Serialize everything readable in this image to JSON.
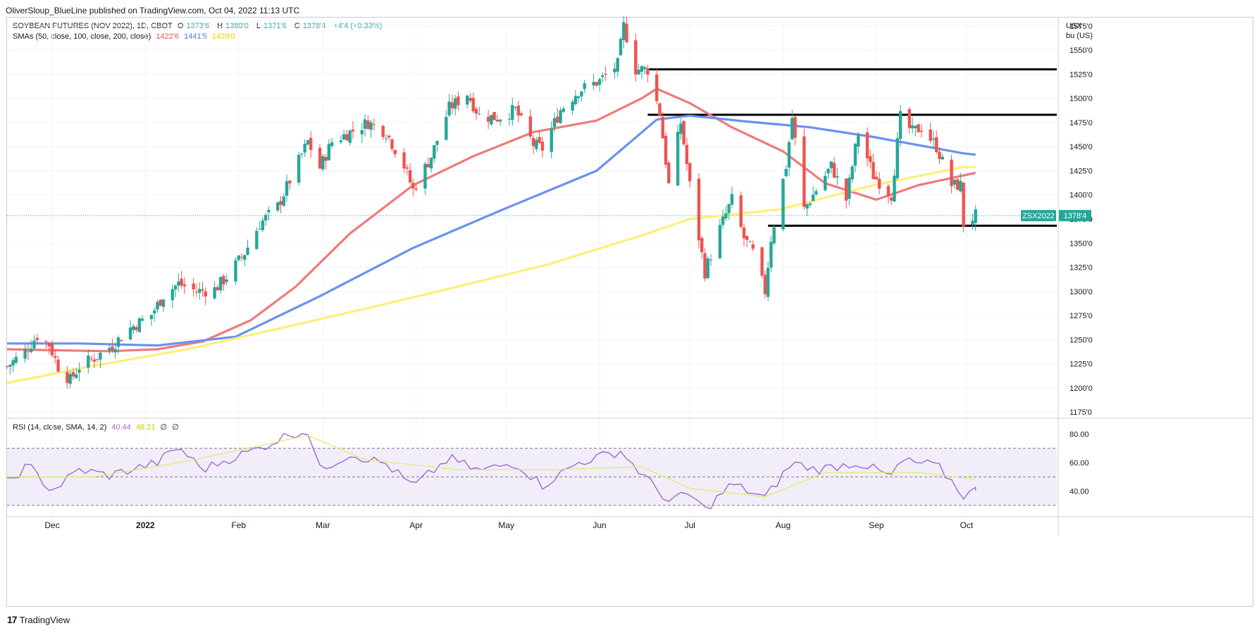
{
  "header": {
    "publisher": "OliverSloup_BlueLine published on TradingView.com, Oct 04, 2022 11:13 UTC"
  },
  "legend": {
    "symbol": "SOYBEAN FUTURES (NOV 2022), 1D, CBOT",
    "open_label": "O",
    "open": "1373'6",
    "high_label": "H",
    "high": "1380'0",
    "low_label": "L",
    "low": "1371'6",
    "close_label": "C",
    "close": "1378'4",
    "change": "+4'4 (+0.33%)",
    "sma_label": "SMAs (50, close, 100, close, 200, close)",
    "sma50": "1422'6",
    "sma100": "1441'5",
    "sma200": "1429'0",
    "rsi_label": "RSI (14, close, SMA, 14, 2)",
    "rsi_value": "40.44",
    "rsi_ma": "48.21",
    "rsi_extra1": "∅",
    "rsi_extra2": "∅"
  },
  "price_axis": {
    "unit_line1": "USX",
    "unit_line2": "bu (US)",
    "ticks": [
      "1575'0",
      "1550'0",
      "1525'0",
      "1500'0",
      "1475'0",
      "1450'0",
      "1425'0",
      "1400'0",
      "1375'0",
      "1350'0",
      "1325'0",
      "1300'0",
      "1275'0",
      "1250'0",
      "1225'0",
      "1200'0",
      "1175'0"
    ]
  },
  "rsi_axis": {
    "ticks": [
      "80.00",
      "60.00",
      "40.00"
    ]
  },
  "time_axis": {
    "labels": [
      "Dec",
      "2022",
      "Feb",
      "Mar",
      "Apr",
      "May",
      "Jun",
      "Jul",
      "Aug",
      "Sep",
      "Oct"
    ]
  },
  "price_tag": {
    "symbol": "ZSX2022",
    "value": "1378'4"
  },
  "footer": {
    "brand": "TradingView"
  },
  "colors": {
    "up": "#26a69a",
    "down": "#ef5350",
    "sma50": "#f0797a",
    "sma100": "#6a91ee",
    "sma200": "#ffee77",
    "rsi": "#9c6ad0",
    "rsi_ma": "#e0ea68",
    "rsi_band": "#ede7f6"
  },
  "chart_data": [
    {
      "type": "candlestick",
      "title": "SOYBEAN FUTURES (NOV 2022), 1D, CBOT",
      "ylim": [
        1170,
        1580
      ],
      "x_range": [
        "2021-11-16",
        "2022-10-31"
      ],
      "y_ticks": [
        1175,
        1200,
        1225,
        1250,
        1275,
        1300,
        1325,
        1350,
        1375,
        1400,
        1425,
        1450,
        1475,
        1500,
        1525,
        1550,
        1575
      ],
      "price_path": [
        [
          "2021-11-16",
          1222
        ],
        [
          "2021-11-22",
          1238
        ],
        [
          "2021-11-26",
          1254
        ],
        [
          "2021-11-30",
          1245
        ],
        [
          "2021-12-03",
          1222
        ],
        [
          "2021-12-07",
          1208
        ],
        [
          "2021-12-10",
          1222
        ],
        [
          "2021-12-16",
          1233
        ],
        [
          "2021-12-21",
          1244
        ],
        [
          "2021-12-27",
          1262
        ],
        [
          "2022-01-03",
          1276
        ],
        [
          "2022-01-07",
          1296
        ],
        [
          "2022-01-12",
          1308
        ],
        [
          "2022-01-18",
          1300
        ],
        [
          "2022-01-24",
          1302
        ],
        [
          "2022-01-28",
          1315
        ],
        [
          "2022-02-03",
          1340
        ],
        [
          "2022-02-08",
          1370
        ],
        [
          "2022-02-14",
          1388
        ],
        [
          "2022-02-18",
          1415
        ],
        [
          "2022-02-24",
          1455
        ],
        [
          "2022-02-28",
          1428
        ],
        [
          "2022-03-04",
          1455
        ],
        [
          "2022-03-10",
          1465
        ],
        [
          "2022-03-16",
          1475
        ],
        [
          "2022-03-22",
          1465
        ],
        [
          "2022-03-28",
          1430
        ],
        [
          "2022-03-31",
          1405
        ],
        [
          "2022-04-06",
          1440
        ],
        [
          "2022-04-12",
          1490
        ],
        [
          "2022-04-18",
          1505
        ],
        [
          "2022-04-22",
          1482
        ],
        [
          "2022-04-28",
          1480
        ],
        [
          "2022-05-04",
          1488
        ],
        [
          "2022-05-10",
          1452
        ],
        [
          "2022-05-13",
          1448
        ],
        [
          "2022-05-19",
          1488
        ],
        [
          "2022-05-25",
          1508
        ],
        [
          "2022-06-01",
          1518
        ],
        [
          "2022-06-07",
          1535
        ],
        [
          "2022-06-09",
          1575
        ],
        [
          "2022-06-13",
          1530
        ],
        [
          "2022-06-17",
          1530
        ],
        [
          "2022-06-21",
          1485
        ],
        [
          "2022-06-24",
          1410
        ],
        [
          "2022-06-28",
          1475
        ],
        [
          "2022-07-01",
          1410
        ],
        [
          "2022-07-06",
          1320
        ],
        [
          "2022-07-11",
          1365
        ],
        [
          "2022-07-15",
          1395
        ],
        [
          "2022-07-19",
          1355
        ],
        [
          "2022-07-22",
          1340
        ],
        [
          "2022-07-26",
          1300
        ],
        [
          "2022-07-28",
          1355
        ],
        [
          "2022-08-02",
          1430
        ],
        [
          "2022-08-04",
          1480
        ],
        [
          "2022-08-08",
          1385
        ],
        [
          "2022-08-12",
          1405
        ],
        [
          "2022-08-17",
          1430
        ],
        [
          "2022-08-22",
          1395
        ],
        [
          "2022-08-26",
          1465
        ],
        [
          "2022-08-31",
          1420
        ],
        [
          "2022-09-06",
          1400
        ],
        [
          "2022-09-09",
          1480
        ],
        [
          "2022-09-13",
          1465
        ],
        [
          "2022-09-16",
          1470
        ],
        [
          "2022-09-21",
          1450
        ],
        [
          "2022-09-26",
          1410
        ],
        [
          "2022-09-29",
          1410
        ],
        [
          "2022-09-30",
          1370
        ],
        [
          "2022-10-04",
          1378.5
        ]
      ],
      "series": [
        {
          "name": "SMA 50",
          "values": [
            [
              "2021-11-16",
              1240
            ],
            [
              "2021-12-01",
              1239
            ],
            [
              "2021-12-20",
              1238
            ],
            [
              "2022-01-05",
              1240
            ],
            [
              "2022-01-20",
              1248
            ],
            [
              "2022-02-05",
              1270
            ],
            [
              "2022-02-20",
              1305
            ],
            [
              "2022-03-10",
              1360
            ],
            [
              "2022-03-31",
              1410
            ],
            [
              "2022-04-20",
              1440
            ],
            [
              "2022-05-10",
              1465
            ],
            [
              "2022-05-31",
              1477
            ],
            [
              "2022-06-15",
              1500
            ],
            [
              "2022-06-20",
              1510
            ],
            [
              "2022-07-01",
              1495
            ],
            [
              "2022-07-15",
              1470
            ],
            [
              "2022-08-01",
              1445
            ],
            [
              "2022-08-15",
              1412
            ],
            [
              "2022-09-01",
              1395
            ],
            [
              "2022-09-15",
              1410
            ],
            [
              "2022-10-04",
              1422.75
            ]
          ]
        },
        {
          "name": "SMA 100",
          "values": [
            [
              "2021-11-16",
              1246
            ],
            [
              "2021-12-10",
              1246
            ],
            [
              "2022-01-05",
              1244
            ],
            [
              "2022-01-31",
              1253
            ],
            [
              "2022-02-28",
              1295
            ],
            [
              "2022-03-31",
              1345
            ],
            [
              "2022-04-30",
              1385
            ],
            [
              "2022-05-31",
              1425
            ],
            [
              "2022-06-20",
              1478
            ],
            [
              "2022-07-01",
              1482
            ],
            [
              "2022-07-20",
              1476
            ],
            [
              "2022-08-10",
              1470
            ],
            [
              "2022-08-31",
              1460
            ],
            [
              "2022-09-30",
              1443
            ],
            [
              "2022-10-04",
              1441.6
            ]
          ]
        },
        {
          "name": "SMA 200",
          "values": [
            [
              "2021-11-16",
              1205
            ],
            [
              "2021-12-15",
              1223
            ],
            [
              "2022-01-15",
              1240
            ],
            [
              "2022-02-15",
              1262
            ],
            [
              "2022-03-15",
              1282
            ],
            [
              "2022-04-15",
              1305
            ],
            [
              "2022-05-15",
              1328
            ],
            [
              "2022-06-15",
              1358
            ],
            [
              "2022-07-01",
              1375
            ],
            [
              "2022-07-31",
              1385
            ],
            [
              "2022-08-31",
              1410
            ],
            [
              "2022-09-30",
              1429
            ],
            [
              "2022-10-04",
              1429
            ]
          ]
        }
      ],
      "horizontal_lines": [
        {
          "from": "2022-06-17",
          "to": "2022-10-31",
          "value": 1530
        },
        {
          "from": "2022-06-17",
          "to": "2022-10-31",
          "value": 1483
        },
        {
          "from": "2022-07-27",
          "to": "2022-10-31",
          "value": 1368
        }
      ],
      "last_price": 1378.5
    },
    {
      "type": "line",
      "title": "RSI (14, close, SMA, 14, 2)",
      "ylim": [
        23,
        90
      ],
      "y_ticks": [
        80,
        60,
        40
      ],
      "bands": [
        70,
        50,
        30
      ],
      "series": [
        {
          "name": "RSI",
          "values": [
            [
              "2021-11-16",
              46
            ],
            [
              "2021-11-23",
              58
            ],
            [
              "2021-12-01",
              40
            ],
            [
              "2021-12-10",
              55
            ],
            [
              "2021-12-20",
              51
            ],
            [
              "2022-01-05",
              60
            ],
            [
              "2022-01-12",
              71
            ],
            [
              "2022-01-20",
              55
            ],
            [
              "2022-01-28",
              62
            ],
            [
              "2022-02-08",
              70
            ],
            [
              "2022-02-18",
              80
            ],
            [
              "2022-02-24",
              82
            ],
            [
              "2022-02-28",
              55
            ],
            [
              "2022-03-10",
              66
            ],
            [
              "2022-03-22",
              59
            ],
            [
              "2022-03-31",
              43
            ],
            [
              "2022-04-12",
              63
            ],
            [
              "2022-04-22",
              54
            ],
            [
              "2022-05-04",
              60
            ],
            [
              "2022-05-13",
              44
            ],
            [
              "2022-05-25",
              60
            ],
            [
              "2022-06-08",
              68
            ],
            [
              "2022-06-15",
              52
            ],
            [
              "2022-06-24",
              33
            ],
            [
              "2022-07-01",
              38
            ],
            [
              "2022-07-06",
              27
            ],
            [
              "2022-07-15",
              45
            ],
            [
              "2022-07-26",
              35
            ],
            [
              "2022-08-04",
              60
            ],
            [
              "2022-08-12",
              55
            ],
            [
              "2022-08-26",
              60
            ],
            [
              "2022-09-06",
              50
            ],
            [
              "2022-09-09",
              61
            ],
            [
              "2022-09-21",
              58
            ],
            [
              "2022-09-26",
              47
            ],
            [
              "2022-09-30",
              37
            ],
            [
              "2022-10-04",
              40.44
            ]
          ]
        },
        {
          "name": "RSI-based MA",
          "values": [
            [
              "2021-11-16",
              50
            ],
            [
              "2021-12-15",
              50
            ],
            [
              "2022-01-15",
              61
            ],
            [
              "2022-02-24",
              79
            ],
            [
              "2022-03-15",
              62
            ],
            [
              "2022-04-15",
              55
            ],
            [
              "2022-05-15",
              55
            ],
            [
              "2022-06-15",
              57
            ],
            [
              "2022-07-01",
              42
            ],
            [
              "2022-07-26",
              36
            ],
            [
              "2022-08-15",
              53
            ],
            [
              "2022-09-15",
              53
            ],
            [
              "2022-10-04",
              48.21
            ]
          ]
        }
      ]
    }
  ]
}
